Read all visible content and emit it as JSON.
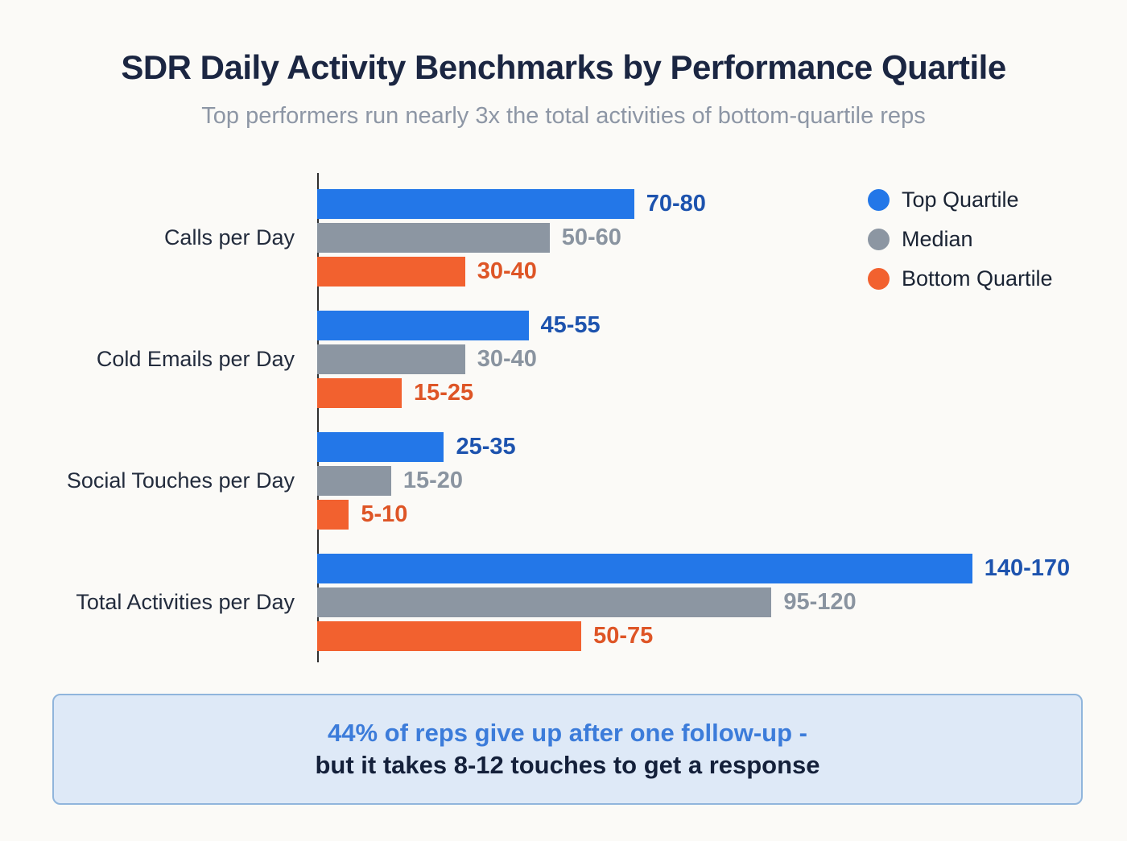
{
  "title": "SDR Daily Activity Benchmarks by Performance Quartile",
  "subtitle": "Top performers run nearly 3x the total activities of bottom-quartile reps",
  "colors": {
    "background": "#fbfaf7",
    "top_quartile_bar": "#2377e8",
    "median_bar": "#8c96a2",
    "bottom_quartile_bar": "#f2612f",
    "top_quartile_label": "#1d53ae",
    "median_label": "#8a94a0",
    "bottom_quartile_label": "#de5526",
    "callout_bg": "#dee9f7",
    "callout_border": "#90b5dc",
    "callout_highlight": "#3c7cda"
  },
  "legend": [
    {
      "label": "Top Quartile",
      "color": "#2377e8"
    },
    {
      "label": "Median",
      "color": "#8c96a2"
    },
    {
      "label": "Bottom Quartile",
      "color": "#f2612f"
    }
  ],
  "chart_data": {
    "type": "bar",
    "orientation": "horizontal",
    "title": "SDR Daily Activity Benchmarks by Performance Quartile",
    "categories": [
      "Calls per Day",
      "Cold Emails per Day",
      "Social Touches per Day",
      "Total Activities per Day"
    ],
    "series": [
      {
        "name": "Top Quartile",
        "bar_color": "#2377e8",
        "label_color": "#1d53ae",
        "ranges": [
          [
            70,
            80
          ],
          [
            45,
            55
          ],
          [
            25,
            35
          ],
          [
            140,
            170
          ]
        ],
        "labels": [
          "70-80",
          "45-55",
          "25-35",
          "140-170"
        ]
      },
      {
        "name": "Median",
        "bar_color": "#8c96a2",
        "label_color": "#8a94a0",
        "ranges": [
          [
            50,
            60
          ],
          [
            30,
            40
          ],
          [
            15,
            20
          ],
          [
            95,
            120
          ]
        ],
        "labels": [
          "50-60",
          "30-40",
          "15-20",
          "95-120"
        ]
      },
      {
        "name": "Bottom Quartile",
        "bar_color": "#f2612f",
        "label_color": "#de5526",
        "ranges": [
          [
            30,
            40
          ],
          [
            15,
            25
          ],
          [
            5,
            10
          ],
          [
            50,
            75
          ]
        ],
        "labels": [
          "30-40",
          "15-25",
          "5-10",
          "50-75"
        ]
      }
    ],
    "axis_max": 180,
    "grid": false,
    "legend_position": "top-right"
  },
  "callout": {
    "line1": "44% of reps give up after one follow-up -",
    "line2": "but it takes 8-12 touches to get a response"
  }
}
